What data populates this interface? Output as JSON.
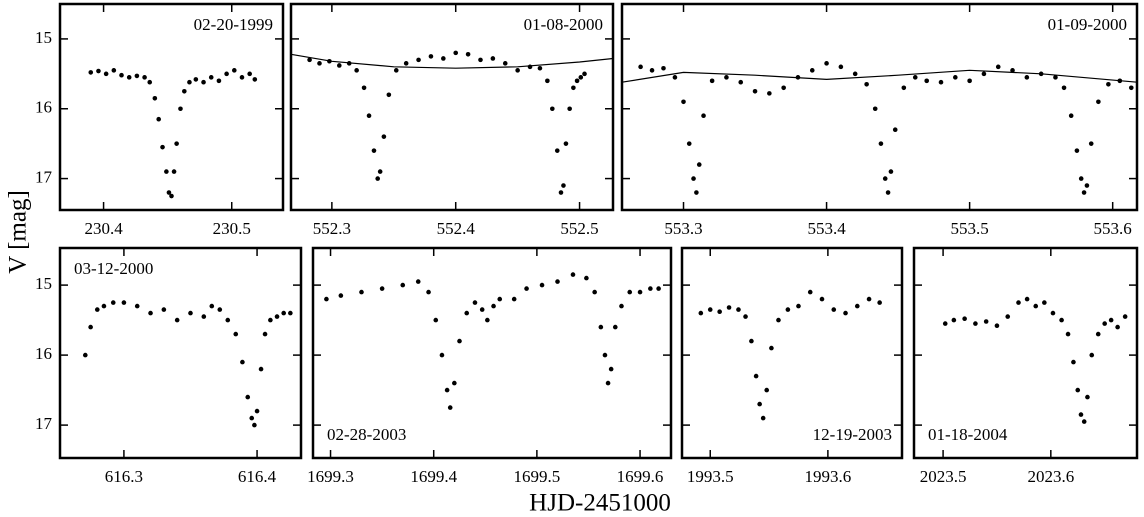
{
  "ylabel": "V [mag]",
  "xlabel": "HJD-2451000",
  "chart_data": [
    {
      "type": "scatter",
      "title": "02-20-1999",
      "title_position": "top-right",
      "xlim": [
        230.366,
        230.54
      ],
      "ylim": [
        17.45,
        14.5
      ],
      "xticks": [
        230.4,
        230.5
      ],
      "yticks": [
        15,
        16,
        17
      ],
      "ytick_labels": true,
      "series": [
        {
          "mode": "markers",
          "color": "#000000",
          "x": [
            230.39,
            230.396,
            230.402,
            230.408,
            230.414,
            230.42,
            230.426,
            230.432,
            230.436,
            230.44,
            230.443,
            230.446,
            230.449,
            230.451,
            230.453,
            230.455,
            230.457,
            230.46,
            230.463,
            230.467,
            230.472,
            230.478,
            230.484,
            230.49,
            230.496,
            230.502,
            230.508,
            230.514,
            230.518
          ],
          "values": [
            15.48,
            15.46,
            15.5,
            15.45,
            15.52,
            15.55,
            15.53,
            15.55,
            15.62,
            15.85,
            16.15,
            16.55,
            16.9,
            17.2,
            17.25,
            16.9,
            16.5,
            16.0,
            15.75,
            15.62,
            15.58,
            15.62,
            15.55,
            15.6,
            15.5,
            15.45,
            15.55,
            15.5,
            15.58
          ]
        }
      ]
    },
    {
      "type": "scatter",
      "title": "01-08-2000",
      "title_position": "top-right",
      "xlim": [
        552.267,
        552.527
      ],
      "ylim": [
        17.45,
        14.5
      ],
      "xticks": [
        552.3,
        552.4,
        552.5
      ],
      "yticks": [
        15,
        16,
        17
      ],
      "ytick_labels": false,
      "series": [
        {
          "mode": "markers",
          "color": "#000000",
          "x": [
            552.282,
            552.29,
            552.298,
            552.306,
            552.314,
            552.32,
            552.326,
            552.33,
            552.334,
            552.337,
            552.339,
            552.342,
            552.346,
            552.352,
            552.36,
            552.37,
            552.38,
            552.39,
            552.4,
            552.41,
            552.42,
            552.43,
            552.44,
            552.45,
            552.46,
            552.468,
            552.474,
            552.478,
            552.482,
            552.485,
            552.487,
            552.489,
            552.492,
            552.495,
            552.498,
            552.501,
            552.504
          ],
          "values": [
            15.3,
            15.35,
            15.32,
            15.38,
            15.35,
            15.45,
            15.7,
            16.1,
            16.6,
            17.0,
            16.9,
            16.4,
            15.8,
            15.45,
            15.35,
            15.3,
            15.25,
            15.28,
            15.2,
            15.22,
            15.3,
            15.28,
            15.35,
            15.45,
            15.4,
            15.42,
            15.6,
            16.0,
            16.6,
            17.2,
            17.1,
            16.5,
            16.0,
            15.7,
            15.6,
            15.55,
            15.5
          ]
        },
        {
          "mode": "line",
          "color": "#000000",
          "x": [
            552.267,
            552.3,
            552.35,
            552.4,
            552.45,
            552.5,
            552.527
          ],
          "values": [
            15.22,
            15.32,
            15.4,
            15.42,
            15.4,
            15.33,
            15.28
          ]
        }
      ]
    },
    {
      "type": "scatter",
      "title": "01-09-2000",
      "title_position": "top-right",
      "xlim": [
        553.257,
        553.617
      ],
      "ylim": [
        17.45,
        14.5
      ],
      "xticks": [
        553.3,
        553.4,
        553.5,
        553.6
      ],
      "yticks": [
        15,
        16,
        17
      ],
      "ytick_labels": false,
      "series": [
        {
          "mode": "markers",
          "color": "#000000",
          "x": [
            553.27,
            553.278,
            553.286,
            553.294,
            553.3,
            553.304,
            553.307,
            553.309,
            553.311,
            553.314,
            553.32,
            553.33,
            553.34,
            553.35,
            553.36,
            553.37,
            553.38,
            553.39,
            553.4,
            553.41,
            553.42,
            553.428,
            553.434,
            553.438,
            553.441,
            553.443,
            553.445,
            553.448,
            553.454,
            553.462,
            553.47,
            553.48,
            553.49,
            553.5,
            553.51,
            553.52,
            553.53,
            553.54,
            553.55,
            553.56,
            553.566,
            553.571,
            553.575,
            553.578,
            553.58,
            553.582,
            553.585,
            553.59,
            553.597,
            553.605,
            553.613
          ],
          "values": [
            15.4,
            15.45,
            15.42,
            15.55,
            15.9,
            16.5,
            17.0,
            17.2,
            16.8,
            16.1,
            15.6,
            15.55,
            15.62,
            15.75,
            15.78,
            15.7,
            15.55,
            15.45,
            15.35,
            15.4,
            15.5,
            15.65,
            16.0,
            16.5,
            17.0,
            17.2,
            16.9,
            16.3,
            15.7,
            15.55,
            15.6,
            15.62,
            15.55,
            15.6,
            15.5,
            15.4,
            15.45,
            15.55,
            15.5,
            15.55,
            15.7,
            16.1,
            16.6,
            17.0,
            17.2,
            17.1,
            16.5,
            15.9,
            15.65,
            15.6,
            15.7
          ]
        },
        {
          "mode": "line",
          "color": "#000000",
          "x": [
            553.257,
            553.3,
            553.35,
            553.4,
            553.45,
            553.5,
            553.55,
            553.617
          ],
          "values": [
            15.62,
            15.48,
            15.52,
            15.58,
            15.52,
            15.45,
            15.5,
            15.62
          ]
        }
      ]
    },
    {
      "type": "scatter",
      "title": "03-12-2000",
      "title_position": "top-left",
      "xlim": [
        616.252,
        616.433
      ],
      "ylim": [
        17.47,
        14.47
      ],
      "xticks": [
        616.3,
        616.4
      ],
      "yticks": [
        15,
        16,
        17
      ],
      "ytick_labels": true,
      "series": [
        {
          "mode": "markers",
          "color": "#000000",
          "x": [
            616.271,
            616.275,
            616.28,
            616.285,
            616.292,
            616.3,
            616.31,
            616.32,
            616.33,
            616.34,
            616.35,
            616.36,
            616.366,
            616.372,
            616.378,
            616.384,
            616.389,
            616.393,
            616.396,
            616.398,
            616.4,
            616.403,
            616.406,
            616.41,
            616.415,
            616.42,
            616.425
          ],
          "values": [
            16.0,
            15.6,
            15.35,
            15.3,
            15.25,
            15.25,
            15.3,
            15.4,
            15.35,
            15.5,
            15.4,
            15.45,
            15.3,
            15.35,
            15.5,
            15.7,
            16.1,
            16.6,
            16.9,
            17.0,
            16.8,
            16.2,
            15.7,
            15.5,
            15.45,
            15.4,
            15.4
          ]
        }
      ]
    },
    {
      "type": "scatter",
      "title": "02-28-2003",
      "title_position": "bottom-left",
      "xlim": [
        1699.283,
        1699.63
      ],
      "ylim": [
        17.47,
        14.47
      ],
      "xticks": [
        1699.3,
        1699.4,
        1699.5,
        1699.6
      ],
      "yticks": [
        15,
        16,
        17
      ],
      "ytick_labels": false,
      "series": [
        {
          "mode": "markers",
          "color": "#000000",
          "x": [
            1699.296,
            1699.31,
            1699.33,
            1699.35,
            1699.37,
            1699.385,
            1699.395,
            1699.402,
            1699.408,
            1699.413,
            1699.416,
            1699.42,
            1699.425,
            1699.432,
            1699.44,
            1699.447,
            1699.452,
            1699.458,
            1699.464,
            1699.478,
            1699.49,
            1699.505,
            1699.52,
            1699.535,
            1699.548,
            1699.556,
            1699.562,
            1699.566,
            1699.569,
            1699.572,
            1699.576,
            1699.582,
            1699.59,
            1699.6,
            1699.61,
            1699.618
          ],
          "values": [
            15.2,
            15.15,
            15.1,
            15.05,
            15.0,
            14.95,
            15.1,
            15.5,
            16.0,
            16.5,
            16.75,
            16.4,
            15.8,
            15.4,
            15.25,
            15.35,
            15.5,
            15.3,
            15.2,
            15.2,
            15.05,
            15.0,
            14.95,
            14.85,
            14.9,
            15.1,
            15.6,
            16.0,
            16.4,
            16.2,
            15.6,
            15.3,
            15.1,
            15.1,
            15.05,
            15.05
          ]
        }
      ]
    },
    {
      "type": "scatter",
      "title": "12-19-2003",
      "title_position": "bottom-right",
      "xlim": [
        1993.476,
        1993.663
      ],
      "ylim": [
        17.47,
        14.47
      ],
      "xticks": [
        1993.5,
        1993.6
      ],
      "yticks": [
        15,
        16,
        17
      ],
      "ytick_labels": false,
      "series": [
        {
          "mode": "markers",
          "color": "#000000",
          "x": [
            1993.492,
            1993.5,
            1993.508,
            1993.516,
            1993.524,
            1993.53,
            1993.535,
            1993.539,
            1993.542,
            1993.545,
            1993.548,
            1993.552,
            1993.558,
            1993.566,
            1993.575,
            1993.585,
            1993.595,
            1993.605,
            1993.615,
            1993.625,
            1993.635,
            1993.644
          ],
          "values": [
            15.4,
            15.35,
            15.38,
            15.32,
            15.35,
            15.45,
            15.8,
            16.3,
            16.7,
            16.9,
            16.5,
            15.9,
            15.5,
            15.35,
            15.3,
            15.1,
            15.2,
            15.35,
            15.4,
            15.3,
            15.2,
            15.25
          ]
        }
      ]
    },
    {
      "type": "scatter",
      "title": "01-18-2004",
      "title_position": "bottom-left",
      "xlim": [
        2023.473,
        2023.68
      ],
      "ylim": [
        17.47,
        14.47
      ],
      "xticks": [
        2023.5,
        2023.6
      ],
      "yticks": [
        15,
        16,
        17
      ],
      "ytick_labels": false,
      "series": [
        {
          "mode": "markers",
          "color": "#000000",
          "x": [
            2023.502,
            2023.51,
            2023.52,
            2023.53,
            2023.54,
            2023.55,
            2023.56,
            2023.57,
            2023.578,
            2023.586,
            2023.594,
            2023.602,
            2023.61,
            2023.616,
            2023.621,
            2023.625,
            2023.628,
            2023.631,
            2023.634,
            2023.638,
            2023.644,
            2023.65,
            2023.656,
            2023.662,
            2023.669
          ],
          "values": [
            15.55,
            15.5,
            15.48,
            15.55,
            15.52,
            15.58,
            15.45,
            15.25,
            15.2,
            15.3,
            15.25,
            15.4,
            15.5,
            15.7,
            16.1,
            16.5,
            16.85,
            16.95,
            16.6,
            16.0,
            15.7,
            15.55,
            15.5,
            15.6,
            15.45
          ]
        }
      ]
    }
  ]
}
